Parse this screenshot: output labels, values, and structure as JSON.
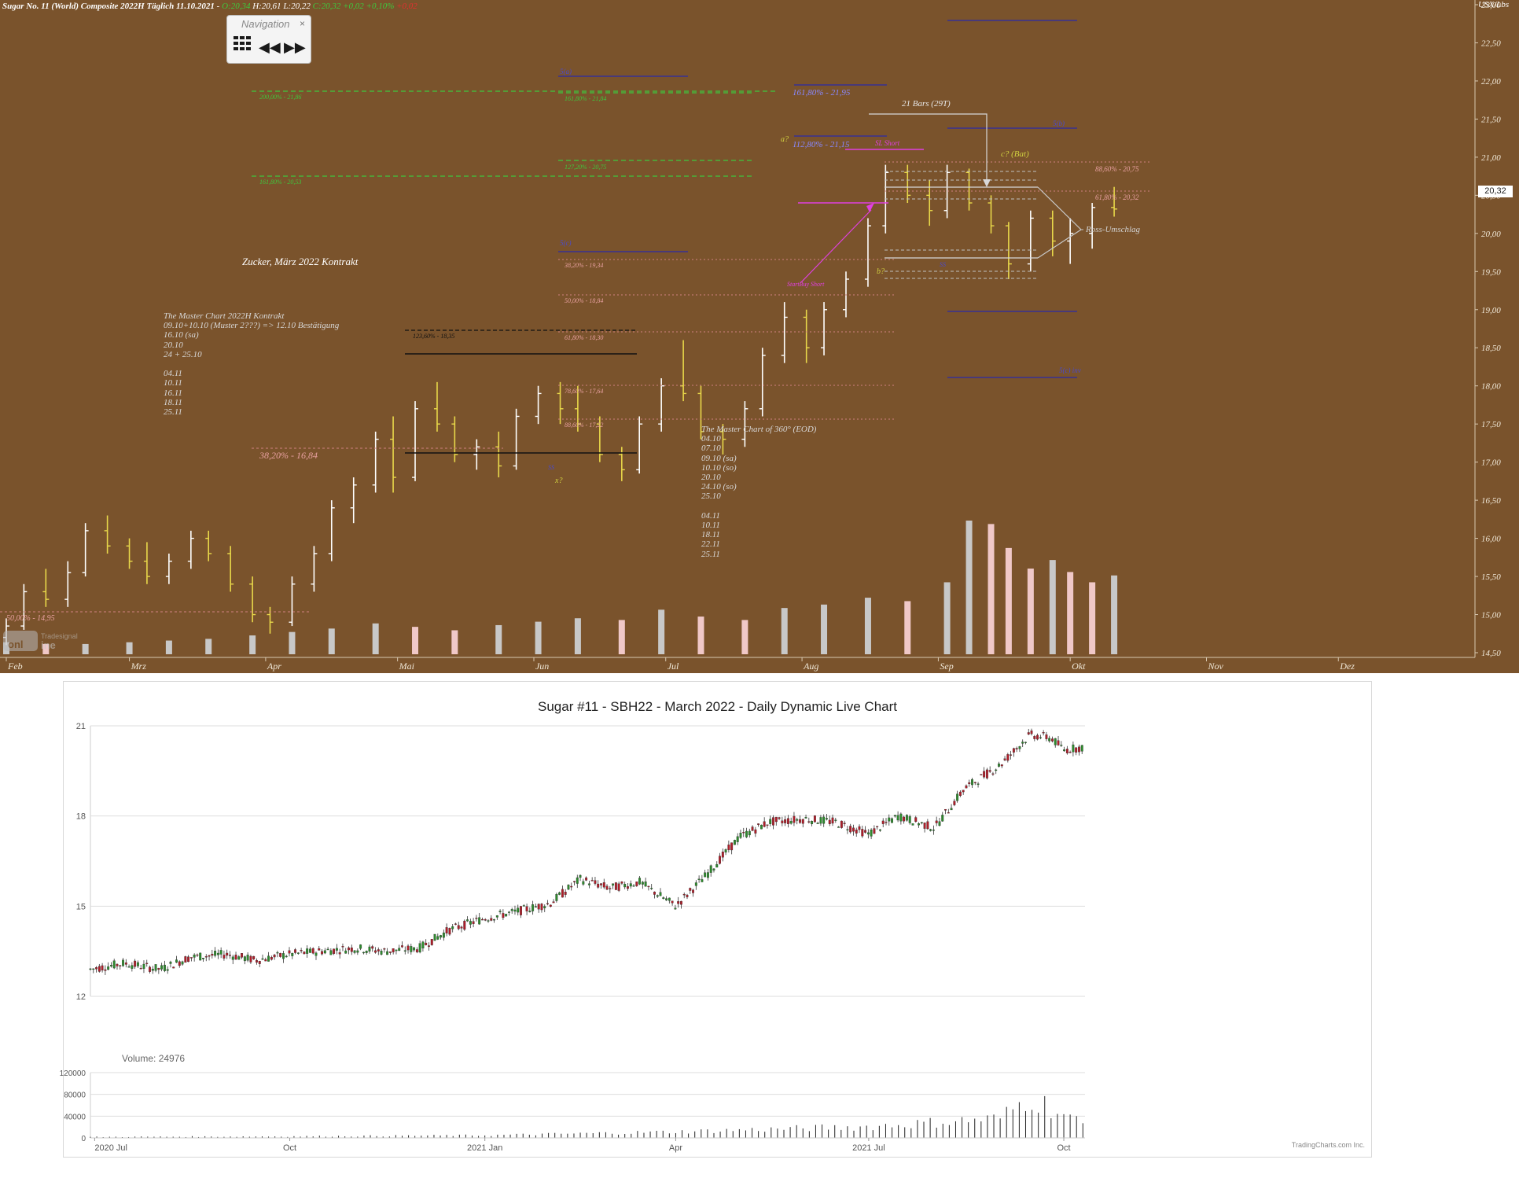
{
  "top_chart": {
    "header": {
      "instrument": "Sugar No. 11 (World) Composite 2022H Täglich 11.10.2021 -",
      "open": "O:20,34",
      "high": "H:20,61",
      "low": "L:20,22",
      "close": "C:20,32 +0,02 +0,10%",
      "extra": "+0,02"
    },
    "unit": "USX/Lbs",
    "price_tag": "20,32",
    "navigation": {
      "title": "Navigation",
      "close": "×",
      "grid_icon": "grid-icon",
      "back": "◀◀",
      "fwd": "▶▶"
    },
    "y_ticks": [
      "23,00",
      "22,50",
      "22,00",
      "21,50",
      "21,00",
      "20,50",
      "20,00",
      "19,50",
      "19,00",
      "18,50",
      "18,00",
      "17,50",
      "17,00",
      "16,50",
      "16,00",
      "15,50",
      "15,00",
      "14,50"
    ],
    "y_tick_values": [
      23.0,
      22.5,
      22.0,
      21.5,
      21.0,
      20.5,
      20.0,
      19.5,
      19.0,
      18.5,
      18.0,
      17.5,
      17.0,
      16.5,
      16.0,
      15.5,
      15.0,
      14.5
    ],
    "x_labels": [
      "Feb",
      "Mrz",
      "Apr",
      "Mai",
      "Jun",
      "Jul",
      "Aug",
      "Sep",
      "Okt",
      "Nov",
      "Dez"
    ],
    "annotations": {
      "title_note": "Zucker, März 2022 Kontrakt",
      "master_title": "The Master Chart 2022H Kontrakt",
      "master_lines": [
        "09.10+10.10 (Muster 2???) => 12.10 Bestätigung",
        "16.10 (sa)",
        "20.10",
        "24 + 25.10",
        "",
        "04.11",
        "10.11",
        "16.11",
        "18.11",
        "25.11"
      ],
      "eod_title": "The Master Chart of 360° (EOD)",
      "eod_lines": [
        "04.10",
        "07.10",
        "09.10 (sa)",
        "10.10 (so)",
        "20.10",
        "24.10 (so)",
        "25.10",
        "",
        "04.11",
        "10.11",
        "18.11",
        "22.11",
        "25.11"
      ],
      "fib_161_top": "161,80% - 21,95",
      "fib_112": "112,80% - 21,15",
      "sl_short": "SL Short",
      "bars_21": "21 Bars (29T)",
      "c_bat": "c? (Bat)",
      "fib_886": "88,60% - 20,75",
      "fib_618_r": "61,80% - 20,32",
      "ross": "Ross-Umschlag",
      "a_label": "a?",
      "b_label": "b?",
      "x_label": "x?",
      "startbuy": "StartBuy Short",
      "sz_a": "5(a)",
      "sz_c": "5(c)",
      "sz_b": "5(b)",
      "sz_a2": "5(a)",
      "sz_inv": "5(c) inv",
      "fib_200": "200,00% - 21,86",
      "fib_161b": "161,80% - 21,84",
      "fib_161g": "161,80% - 20,53",
      "fib_127": "127,20% - 20,75",
      "fib_382": "38,20% - 19,34",
      "fib_500": "50,00% - 18,84",
      "fib_618": "61,80% - 18,30",
      "fib_786": "78,60% - 17,64",
      "fib_886b": "88,60% - 17,22",
      "fib_123": "123,60% - 18,35",
      "fib_382_low": "38,20% - 16,84",
      "fib_low": "50,00% - 14,95",
      "ss_1": "SS",
      "ss_2": "SS",
      "logo": "Tradesignal online"
    }
  },
  "chart_data": [
    {
      "type": "candlestick",
      "title": "",
      "xlabel": "",
      "ylabel": "USX/Lbs",
      "ylim": [
        14.5,
        23.0
      ],
      "x_range": [
        "2021-02-01",
        "2021-12-31"
      ],
      "last_bar": {
        "date": "2021-10-11",
        "open": 20.34,
        "high": 20.61,
        "low": 20.22,
        "close": 20.32
      },
      "ohlc": [
        [
          "2021-02-01",
          14.7,
          14.95,
          14.6,
          14.85
        ],
        [
          "2021-02-05",
          14.85,
          15.4,
          14.8,
          15.3
        ],
        [
          "2021-02-10",
          15.3,
          15.6,
          15.1,
          15.2
        ],
        [
          "2021-02-15",
          15.2,
          15.7,
          15.1,
          15.55
        ],
        [
          "2021-02-19",
          15.55,
          16.2,
          15.5,
          16.1
        ],
        [
          "2021-02-24",
          16.1,
          16.3,
          15.8,
          15.9
        ],
        [
          "2021-03-01",
          15.9,
          16.0,
          15.6,
          15.7
        ],
        [
          "2021-03-05",
          15.7,
          15.95,
          15.4,
          15.5
        ],
        [
          "2021-03-10",
          15.5,
          15.8,
          15.4,
          15.7
        ],
        [
          "2021-03-15",
          15.7,
          16.1,
          15.6,
          16.0
        ],
        [
          "2021-03-19",
          16.0,
          16.1,
          15.7,
          15.8
        ],
        [
          "2021-03-24",
          15.8,
          15.9,
          15.3,
          15.4
        ],
        [
          "2021-03-29",
          15.4,
          15.5,
          14.9,
          15.0
        ],
        [
          "2021-04-02",
          15.0,
          15.1,
          14.75,
          14.9
        ],
        [
          "2021-04-07",
          14.9,
          15.5,
          14.85,
          15.4
        ],
        [
          "2021-04-12",
          15.4,
          15.9,
          15.3,
          15.8
        ],
        [
          "2021-04-16",
          15.8,
          16.5,
          15.7,
          16.4
        ],
        [
          "2021-04-21",
          16.4,
          16.8,
          16.2,
          16.7
        ],
        [
          "2021-04-26",
          16.7,
          17.4,
          16.6,
          17.3
        ],
        [
          "2021-04-30",
          17.3,
          17.6,
          16.6,
          16.8
        ],
        [
          "2021-05-05",
          16.8,
          17.8,
          16.75,
          17.7
        ],
        [
          "2021-05-10",
          17.7,
          18.05,
          17.4,
          17.5
        ],
        [
          "2021-05-14",
          17.5,
          17.6,
          17.0,
          17.1
        ],
        [
          "2021-05-19",
          17.1,
          17.3,
          16.9,
          17.2
        ],
        [
          "2021-05-24",
          17.2,
          17.4,
          16.8,
          16.95
        ],
        [
          "2021-05-28",
          16.95,
          17.7,
          16.9,
          17.6
        ],
        [
          "2021-06-02",
          17.6,
          18.0,
          17.5,
          17.9
        ],
        [
          "2021-06-07",
          17.9,
          18.05,
          17.5,
          17.7
        ],
        [
          "2021-06-11",
          17.7,
          18.0,
          17.4,
          17.5
        ],
        [
          "2021-06-16",
          17.5,
          17.6,
          17.0,
          17.1
        ],
        [
          "2021-06-21",
          17.1,
          17.2,
          16.75,
          16.9
        ],
        [
          "2021-06-25",
          16.9,
          17.6,
          16.85,
          17.5
        ],
        [
          "2021-06-30",
          17.5,
          18.1,
          17.4,
          18.0
        ],
        [
          "2021-07-05",
          18.0,
          18.6,
          17.8,
          17.9
        ],
        [
          "2021-07-09",
          17.9,
          18.0,
          17.3,
          17.4
        ],
        [
          "2021-07-14",
          17.4,
          17.5,
          17.1,
          17.3
        ],
        [
          "2021-07-19",
          17.3,
          17.8,
          17.2,
          17.7
        ],
        [
          "2021-07-23",
          17.7,
          18.5,
          17.6,
          18.4
        ],
        [
          "2021-07-28",
          18.4,
          19.1,
          18.3,
          18.9
        ],
        [
          "2021-08-02",
          18.9,
          19.0,
          18.3,
          18.5
        ],
        [
          "2021-08-06",
          18.5,
          19.1,
          18.4,
          19.0
        ],
        [
          "2021-08-11",
          19.0,
          19.5,
          18.9,
          19.4
        ],
        [
          "2021-08-16",
          19.4,
          20.2,
          19.3,
          20.1
        ],
        [
          "2021-08-20",
          20.1,
          20.9,
          20.0,
          20.8
        ],
        [
          "2021-08-25",
          20.8,
          20.9,
          20.4,
          20.5
        ],
        [
          "2021-08-30",
          20.5,
          20.7,
          20.1,
          20.3
        ],
        [
          "2021-09-03",
          20.3,
          20.9,
          20.2,
          20.8
        ],
        [
          "2021-09-08",
          20.8,
          20.85,
          20.3,
          20.4
        ],
        [
          "2021-09-13",
          20.4,
          20.5,
          20.0,
          20.1
        ],
        [
          "2021-09-17",
          20.1,
          20.15,
          19.4,
          19.6
        ],
        [
          "2021-09-22",
          19.6,
          20.3,
          19.5,
          20.2
        ],
        [
          "2021-09-27",
          20.2,
          20.3,
          19.7,
          19.9
        ],
        [
          "2021-10-01",
          19.9,
          20.2,
          19.6,
          20.0
        ],
        [
          "2021-10-06",
          20.0,
          20.4,
          19.8,
          20.34
        ],
        [
          "2021-10-11",
          20.34,
          20.61,
          20.22,
          20.32
        ]
      ],
      "volume": [
        [
          "2021-02-01",
          7
        ],
        [
          "2021-02-10",
          6
        ],
        [
          "2021-02-19",
          6
        ],
        [
          "2021-03-01",
          7
        ],
        [
          "2021-03-10",
          8
        ],
        [
          "2021-03-19",
          9
        ],
        [
          "2021-03-29",
          11
        ],
        [
          "2021-04-07",
          13
        ],
        [
          "2021-04-16",
          15
        ],
        [
          "2021-04-26",
          18
        ],
        [
          "2021-05-05",
          16
        ],
        [
          "2021-05-14",
          14
        ],
        [
          "2021-05-24",
          17
        ],
        [
          "2021-06-02",
          19
        ],
        [
          "2021-06-11",
          21
        ],
        [
          "2021-06-21",
          20
        ],
        [
          "2021-06-30",
          26
        ],
        [
          "2021-07-09",
          22
        ],
        [
          "2021-07-19",
          20
        ],
        [
          "2021-07-28",
          27
        ],
        [
          "2021-08-06",
          29
        ],
        [
          "2021-08-16",
          33
        ],
        [
          "2021-08-25",
          31
        ],
        [
          "2021-09-03",
          42
        ],
        [
          "2021-09-08",
          78
        ],
        [
          "2021-09-13",
          76
        ],
        [
          "2021-09-17",
          62
        ],
        [
          "2021-09-22",
          50
        ],
        [
          "2021-09-27",
          55
        ],
        [
          "2021-10-01",
          48
        ],
        [
          "2021-10-06",
          42
        ],
        [
          "2021-10-11",
          46
        ]
      ]
    },
    {
      "type": "candlestick",
      "title": "Sugar #11 - SBH22 - March 2022 - Daily Dynamic Live Chart",
      "xlabel": "",
      "ylabel": "",
      "ylim": [
        12,
        21
      ],
      "x_range": [
        "2020-06-29",
        "2021-10-11"
      ],
      "x_labels": [
        "2020 Jul",
        "Oct",
        "2021 Jan",
        "Apr",
        "2021 Jul",
        "Oct"
      ],
      "y_ticks": [
        21,
        18,
        15,
        12
      ],
      "closes": [
        [
          "2020-06-29",
          12.9
        ],
        [
          "2020-07-15",
          13.1
        ],
        [
          "2020-08-01",
          12.9
        ],
        [
          "2020-08-15",
          13.3
        ],
        [
          "2020-09-01",
          13.4
        ],
        [
          "2020-09-15",
          13.2
        ],
        [
          "2020-10-01",
          13.4
        ],
        [
          "2020-10-15",
          13.5
        ],
        [
          "2020-11-01",
          13.6
        ],
        [
          "2020-11-15",
          13.5
        ],
        [
          "2020-12-01",
          13.6
        ],
        [
          "2020-12-15",
          14.2
        ],
        [
          "2021-01-01",
          14.6
        ],
        [
          "2021-01-15",
          14.8
        ],
        [
          "2021-02-01",
          15.1
        ],
        [
          "2021-02-15",
          15.9
        ],
        [
          "2021-03-01",
          15.6
        ],
        [
          "2021-03-15",
          15.8
        ],
        [
          "2021-04-01",
          15.0
        ],
        [
          "2021-04-15",
          16.0
        ],
        [
          "2021-05-01",
          17.3
        ],
        [
          "2021-05-15",
          17.8
        ],
        [
          "2021-06-01",
          17.9
        ],
        [
          "2021-06-15",
          17.8
        ],
        [
          "2021-07-01",
          17.4
        ],
        [
          "2021-07-15",
          18.0
        ],
        [
          "2021-08-01",
          17.6
        ],
        [
          "2021-08-15",
          18.9
        ],
        [
          "2021-09-01",
          19.7
        ],
        [
          "2021-09-15",
          20.7
        ],
        [
          "2021-09-25",
          20.6
        ],
        [
          "2021-10-01",
          20.2
        ],
        [
          "2021-10-11",
          20.3
        ]
      ],
      "volume_label": "Volume: 24976",
      "volume_ticks": [
        120000,
        80000,
        40000,
        0
      ],
      "volume": [
        [
          "2020-07-01",
          2000
        ],
        [
          "2020-10-01",
          3000
        ],
        [
          "2021-01-01",
          5000
        ],
        [
          "2021-04-01",
          12000
        ],
        [
          "2021-07-01",
          22000
        ],
        [
          "2021-08-01",
          30000
        ],
        [
          "2021-09-01",
          38000
        ],
        [
          "2021-09-15",
          80000
        ],
        [
          "2021-10-01",
          45000
        ],
        [
          "2021-10-11",
          24976
        ]
      ],
      "credit": "TradingCharts.com Inc."
    }
  ]
}
